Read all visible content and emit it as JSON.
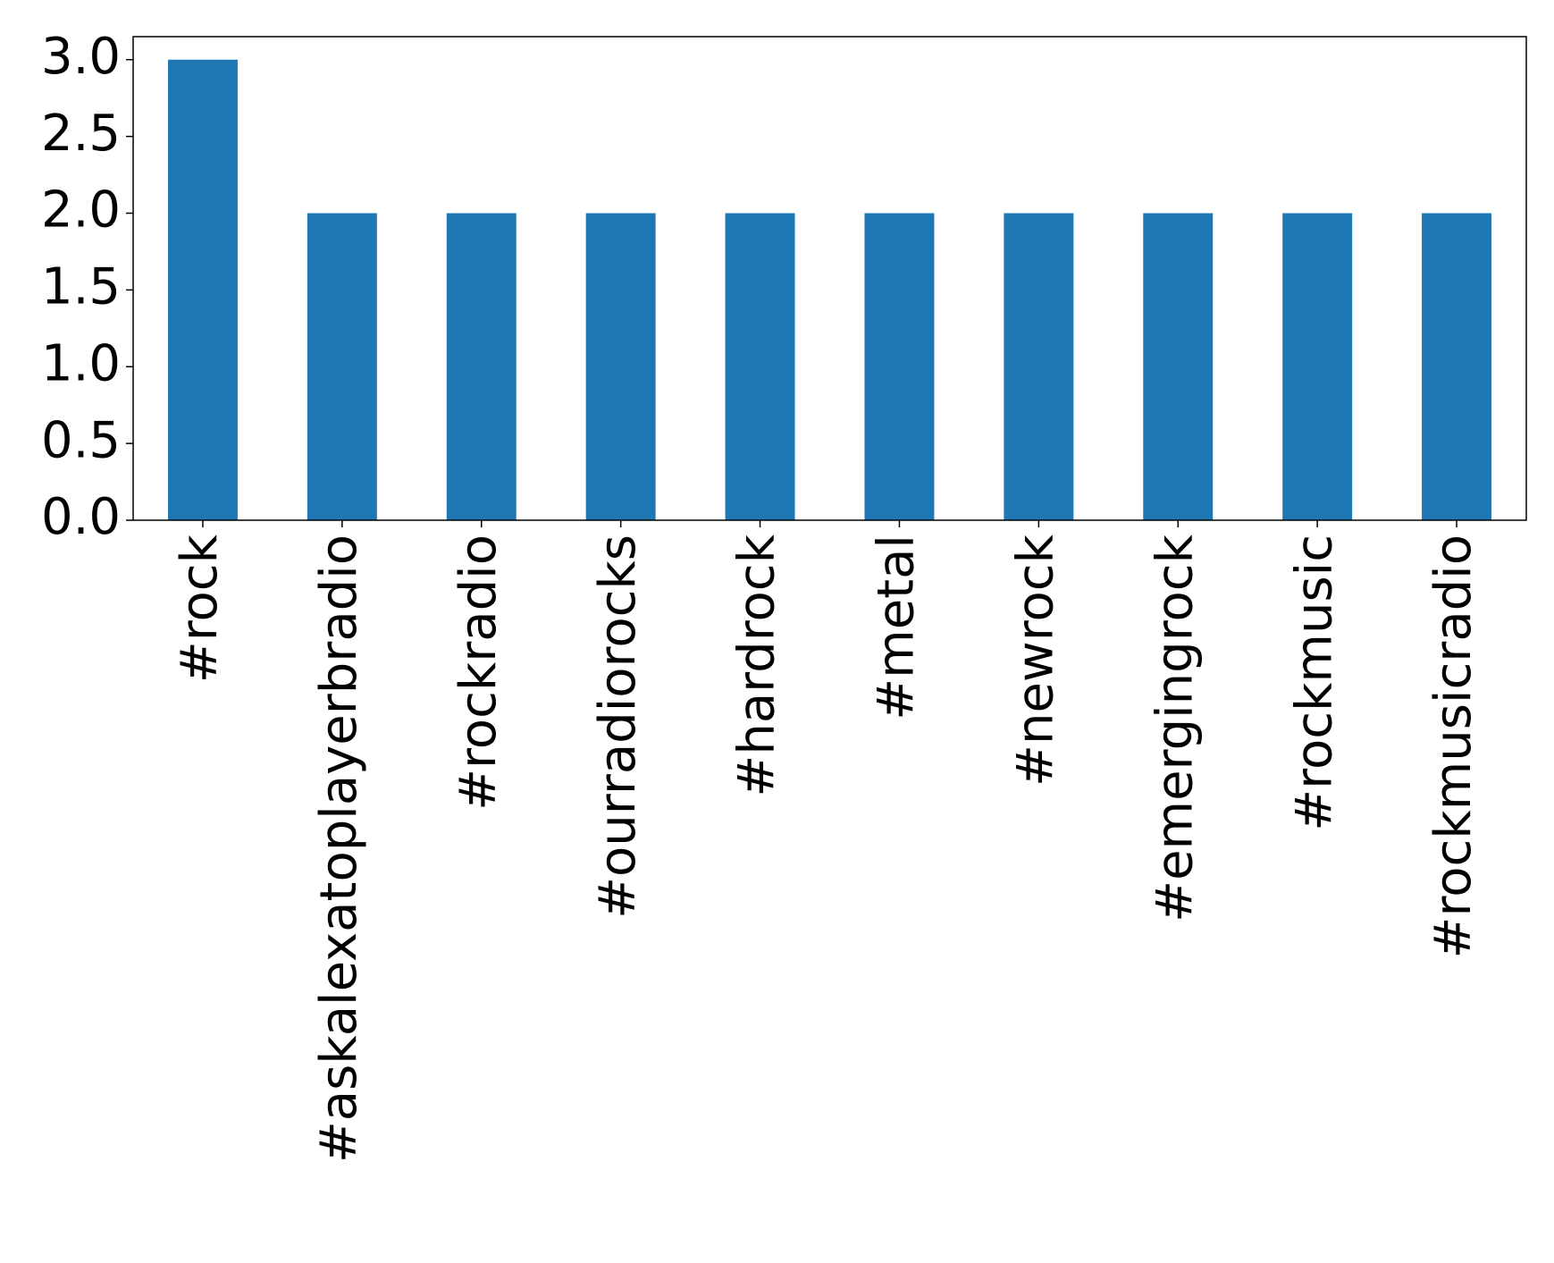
{
  "chart_data": {
    "type": "bar",
    "categories": [
      "#rock",
      "#askalexatoplayerbradio",
      "#rockradio",
      "#ourradiorocks",
      "#hardrock",
      "#metal",
      "#newrock",
      "#emergingrock",
      "#rockmusic",
      "#rockmusicradio"
    ],
    "values": [
      3,
      2,
      2,
      2,
      2,
      2,
      2,
      2,
      2,
      2
    ],
    "color": "#1f77b4",
    "ylim": [
      0,
      3.15
    ],
    "yticks": [
      {
        "value": 0,
        "label": "0.0"
      },
      0.5,
      {
        "value": 1,
        "label": "1.0"
      },
      1.5,
      {
        "value": 2,
        "label": "2.0"
      },
      2.5,
      {
        "value": 3,
        "label": "3.0"
      }
    ]
  }
}
